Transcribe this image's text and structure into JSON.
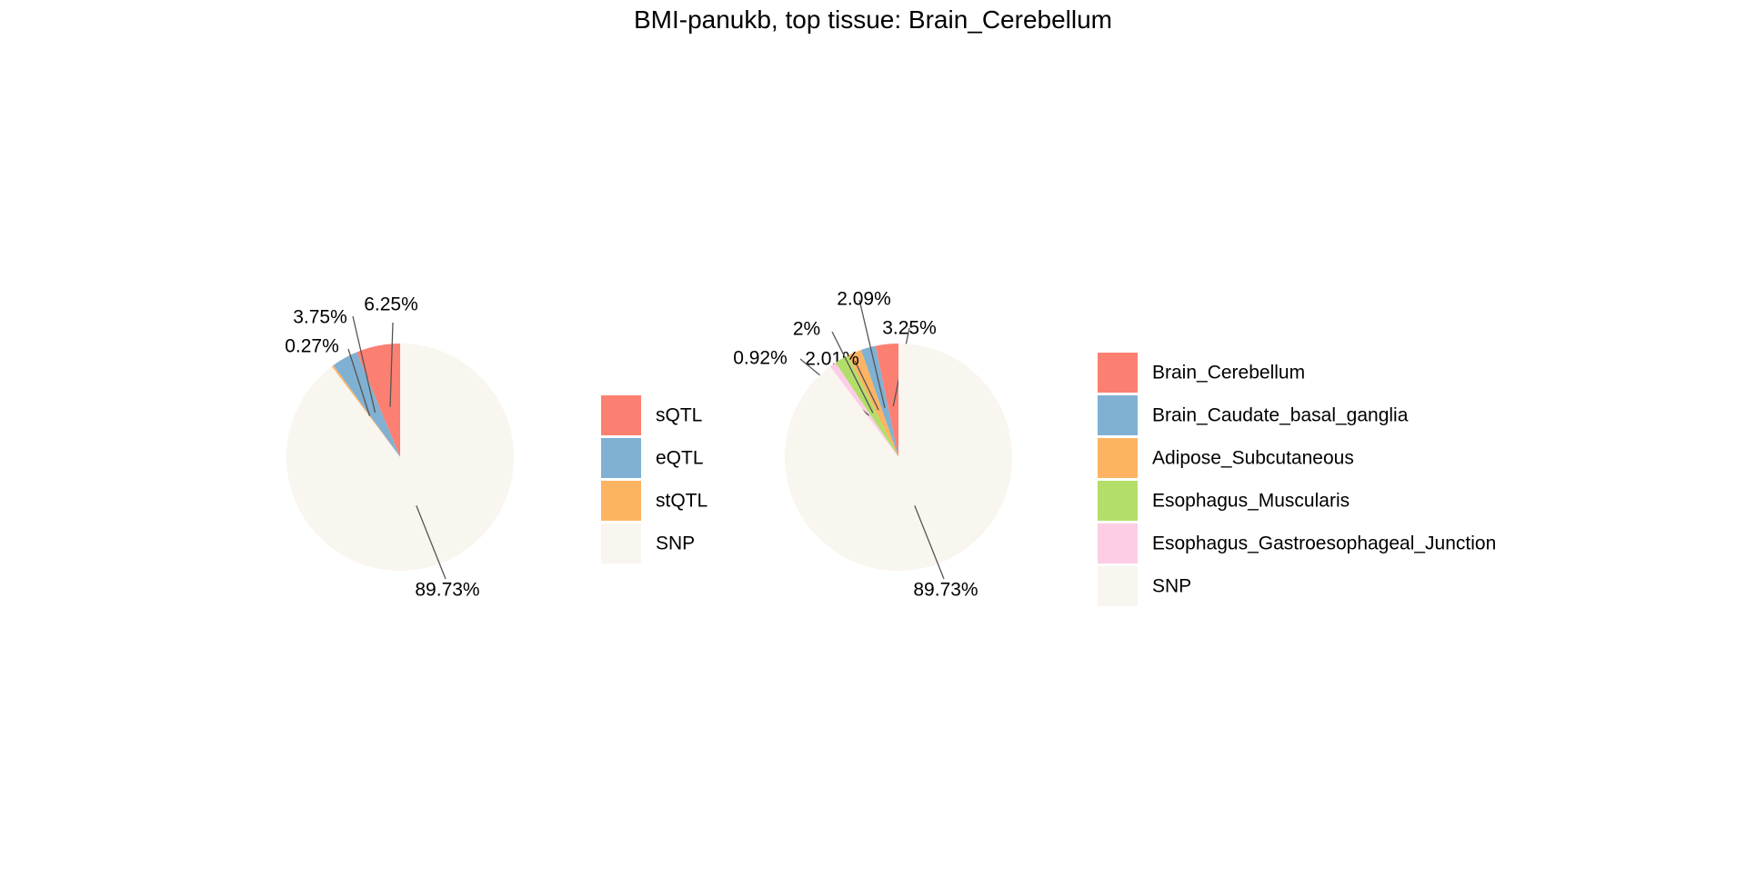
{
  "title": "BMI-panukb, top tissue: Brain_Cerebellum",
  "chart_data": [
    {
      "type": "pie",
      "slices": [
        {
          "name": "sQTL",
          "value": 6.25,
          "label": "6.25%",
          "color": "#FB8072"
        },
        {
          "name": "eQTL",
          "value": 3.75,
          "label": "3.75%",
          "color": "#80B1D3"
        },
        {
          "name": "stQTL",
          "value": 0.27,
          "label": "0.27%",
          "color": "#FDB462"
        },
        {
          "name": "SNP",
          "value": 89.73,
          "label": "89.73%",
          "color": "#F9F5EF"
        }
      ],
      "legend": [
        "sQTL",
        "eQTL",
        "stQTL",
        "SNP"
      ]
    },
    {
      "type": "pie",
      "slices": [
        {
          "name": "Brain_Cerebellum",
          "value": 3.25,
          "label": "3.25%",
          "color": "#FB8072"
        },
        {
          "name": "Brain_Caudate_basal_ganglia",
          "value": 2.09,
          "label": "2.09%",
          "color": "#80B1D3"
        },
        {
          "name": "Adipose_Subcutaneous",
          "value": 2.01,
          "label": "2.01%",
          "color": "#FDB462"
        },
        {
          "name": "Esophagus_Muscularis",
          "value": 2.0,
          "label": "2%",
          "color": "#B3DE69"
        },
        {
          "name": "Esophagus_Gastroesophageal_Junction",
          "value": 0.92,
          "label": "0.92%",
          "color": "#FCCDE5"
        },
        {
          "name": "SNP",
          "value": 89.73,
          "label": "89.73%",
          "color": "#F9F5EF"
        }
      ],
      "legend": [
        "Brain_Cerebellum",
        "Brain_Caudate_basal_ganglia",
        "Adipose_Subcutaneous",
        "Esophagus_Muscularis",
        "Esophagus_Gastroesophageal_Junction",
        "SNP"
      ]
    }
  ]
}
